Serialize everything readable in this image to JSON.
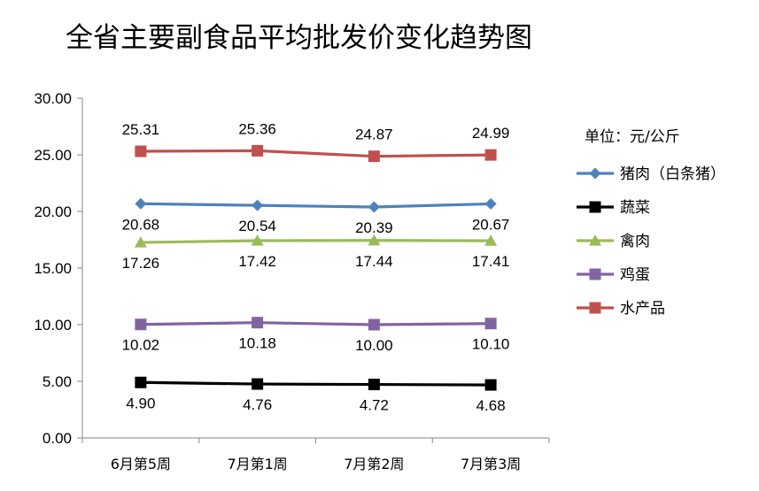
{
  "chart_data": {
    "type": "line",
    "title": "全省主要副食品平均批发价变化趋势图",
    "unit_label": "单位：元/公斤",
    "categories": [
      "6月第5周",
      "7月第1周",
      "7月第2周",
      "7月第3周"
    ],
    "ylim": [
      0,
      30
    ],
    "yticks": [
      "0.00",
      "5.00",
      "10.00",
      "15.00",
      "20.00",
      "25.00",
      "30.00"
    ],
    "grid": false,
    "legend_position": "right",
    "series": [
      {
        "name": "猪肉（白条猪）",
        "color": "#4f81bd",
        "marker": "diamond",
        "label_pos": "below",
        "values": [
          20.68,
          20.54,
          20.39,
          20.67
        ],
        "labels": [
          "20.68",
          "20.54",
          "20.39",
          "20.67"
        ]
      },
      {
        "name": "蔬菜",
        "color": "#000000",
        "marker": "square",
        "label_pos": "below",
        "values": [
          4.9,
          4.76,
          4.72,
          4.68
        ],
        "labels": [
          "4.90",
          "4.76",
          "4.72",
          "4.68"
        ]
      },
      {
        "name": "禽肉",
        "color": "#9bbb59",
        "marker": "triangle",
        "label_pos": "below",
        "values": [
          17.26,
          17.42,
          17.44,
          17.41
        ],
        "labels": [
          "17.26",
          "17.42",
          "17.44",
          "17.41"
        ]
      },
      {
        "name": "鸡蛋",
        "color": "#8064a2",
        "marker": "square",
        "label_pos": "below",
        "values": [
          10.02,
          10.18,
          10.0,
          10.1
        ],
        "labels": [
          "10.02",
          "10.18",
          "10.00",
          "10.10"
        ]
      },
      {
        "name": "水产品",
        "color": "#c0504d",
        "marker": "square",
        "label_pos": "above",
        "values": [
          25.31,
          25.36,
          24.87,
          24.99
        ],
        "labels": [
          "25.31",
          "25.36",
          "24.87",
          "24.99"
        ]
      }
    ]
  }
}
